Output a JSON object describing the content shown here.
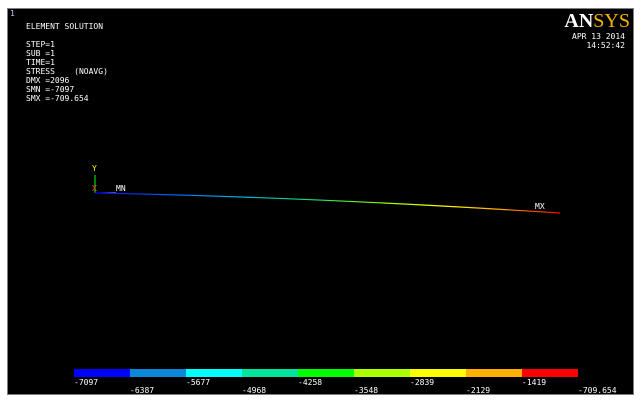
{
  "window": {
    "number": "1"
  },
  "header": {
    "title": "ELEMENT SOLUTION",
    "lines": [
      "STEP=1",
      "SUB =1",
      "TIME=1",
      "STRESS    (NOAVG)",
      "DMX =2096",
      "SMN =-7097",
      "SMX =-709.654"
    ]
  },
  "logo": {
    "part1": "AN",
    "part2": "SYS"
  },
  "timestamp": {
    "date": "APR 13 2014",
    "time": "14:52:42"
  },
  "triad": {
    "y_label": "Y",
    "x_label": "X",
    "origin_label": "MN"
  },
  "max_label": "MX",
  "legend": {
    "colors": [
      "#0000ff",
      "#0b87d9",
      "#00ffff",
      "#00e59c",
      "#00ff00",
      "#aaff00",
      "#ffff00",
      "#ffb000",
      "#ff0000"
    ],
    "values_top": [
      "-7097",
      "-5677",
      "-4258",
      "-2839",
      "-1419"
    ],
    "values_bottom": [
      "-6387",
      "-4968",
      "-3548",
      "-2129",
      "-709.654"
    ]
  }
}
